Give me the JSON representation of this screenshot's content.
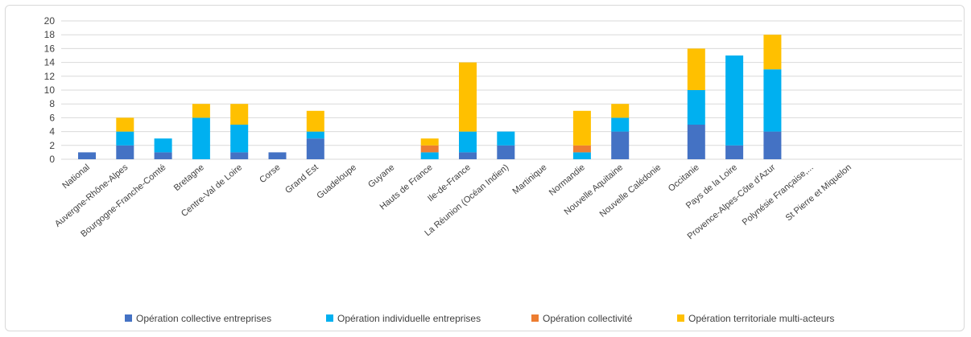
{
  "chart_data": {
    "type": "bar",
    "stacked": true,
    "title": "",
    "xlabel": "",
    "ylabel": "",
    "ylim": [
      0,
      20
    ],
    "yticks": [
      0,
      2,
      4,
      6,
      8,
      10,
      12,
      14,
      16,
      18,
      20
    ],
    "grid": true,
    "legend_position": "bottom",
    "categories": [
      "National",
      "Auvergne-Rhône-Alpes",
      "Bourgogne-Franche-Comté",
      "Bretagne",
      "Centre-Val de Loire",
      "Corse",
      "Grand Est",
      "Guadeloupe",
      "Guyane",
      "Hauts de France",
      "Ile-de-France",
      "La Réunion (Océan Indien)",
      "Martinique",
      "Normandie",
      "Nouvelle Aquitaine",
      "Nouvelle Calédonie",
      "Occitanie",
      "Pays de la Loire",
      "Provence-Alpes-Côte d'Azur",
      "Polynésie Française,...",
      "St Pierre et Miquelon"
    ],
    "series": [
      {
        "name": "Opération collective entreprises",
        "color": "#4472c4",
        "values": [
          1,
          2,
          1,
          0,
          1,
          1,
          3,
          0,
          0,
          0,
          1,
          2,
          0,
          0,
          4,
          0,
          5,
          2,
          4,
          0,
          0
        ]
      },
      {
        "name": "Opération individuelle entreprises",
        "color": "#00b0f0",
        "values": [
          0,
          2,
          2,
          6,
          4,
          0,
          1,
          0,
          0,
          1,
          3,
          2,
          0,
          1,
          2,
          0,
          5,
          13,
          9,
          0,
          0
        ]
      },
      {
        "name": "Opération collectivité",
        "color": "#ed7d31",
        "values": [
          0,
          0,
          0,
          0,
          0,
          0,
          0,
          0,
          0,
          1,
          0,
          0,
          0,
          1,
          0,
          0,
          0,
          0,
          0,
          0,
          0
        ]
      },
      {
        "name": "Opération territoriale multi-acteurs",
        "color": "#ffc000",
        "values": [
          0,
          2,
          0,
          2,
          3,
          0,
          3,
          0,
          0,
          1,
          10,
          0,
          0,
          5,
          2,
          0,
          6,
          0,
          5,
          0,
          0
        ]
      }
    ]
  }
}
